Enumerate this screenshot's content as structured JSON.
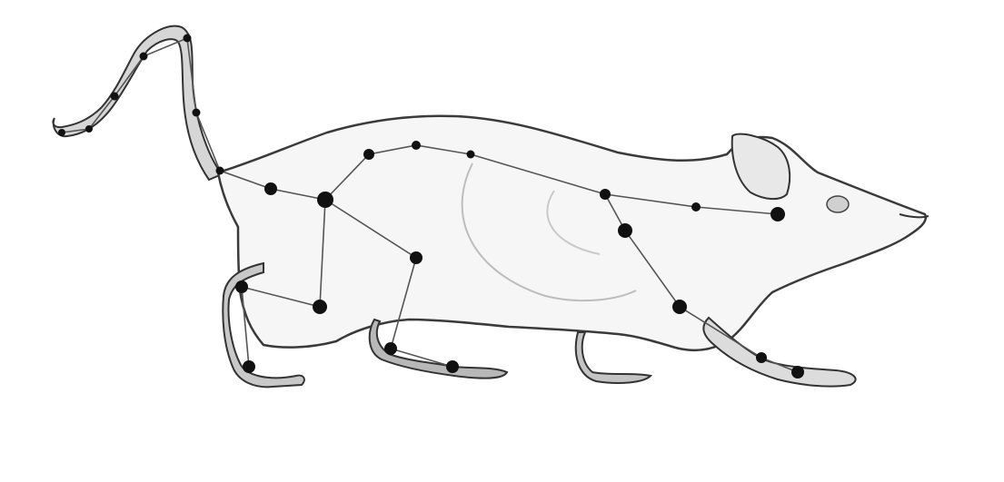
{
  "figure": {
    "subject": "rat-skeleton-keypoints",
    "colors": {
      "background": "#ffffff",
      "body_fill": "#f6f6f6",
      "body_outline": "#3a3a3a",
      "bone_line": "#555555",
      "joint_fill": "#111111",
      "fur_shade": "#cfcfcf",
      "tail_fill": "#cccccc"
    }
  }
}
